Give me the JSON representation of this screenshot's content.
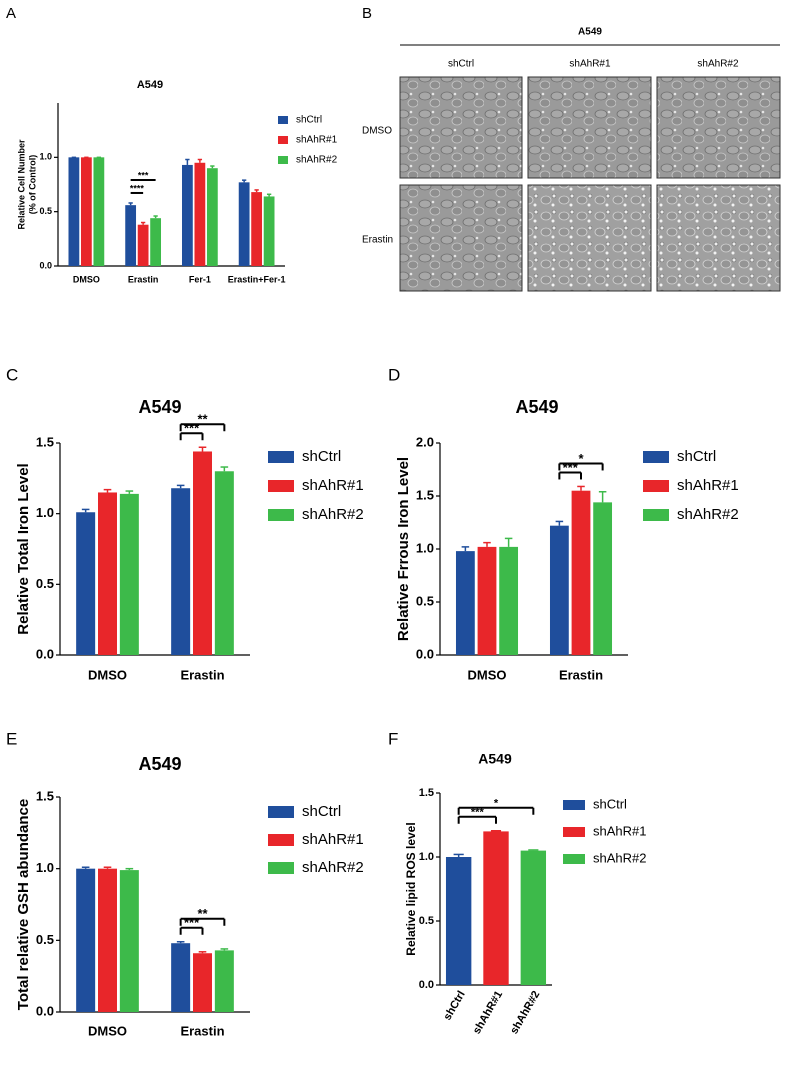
{
  "panel_b": {
    "label": "B",
    "title": "A549",
    "columns": [
      "shCtrl",
      "shAhR#1",
      "shAhR#2"
    ],
    "rows": [
      "DMSO",
      "Erastin"
    ]
  },
  "chart_data": [
    {
      "type": "bar",
      "label": "A",
      "title": "A549",
      "ylabel": [
        "Relative Cell Number",
        "(% of Control)"
      ],
      "categories": [
        "DMSO",
        "Erastin",
        "Fer-1",
        "Erastin+Fer-1"
      ],
      "series": [
        {
          "name": "shCtrl",
          "color": "#1f4e9c",
          "values": [
            1.0,
            0.56,
            0.93,
            0.77
          ],
          "errors": [
            0.0,
            0.02,
            0.05,
            0.02
          ]
        },
        {
          "name": "shAhR#1",
          "color": "#e8262a",
          "values": [
            1.0,
            0.38,
            0.95,
            0.68
          ],
          "errors": [
            0.0,
            0.02,
            0.03,
            0.02
          ]
        },
        {
          "name": "shAhR#2",
          "color": "#3dba4a",
          "values": [
            1.0,
            0.44,
            0.9,
            0.64
          ],
          "errors": [
            0.0,
            0.02,
            0.02,
            0.02
          ]
        }
      ],
      "ylim": [
        0,
        1.5
      ],
      "yticks": [
        {
          "value": 0,
          "label": "0.0"
        },
        {
          "value": 0.5,
          "label": "0.5"
        },
        {
          "value": 1,
          "label": "1.0"
        }
      ],
      "annotations": [
        "****",
        "***"
      ]
    },
    {
      "type": "bar",
      "label": "C",
      "title": "A549",
      "ylabel": "Relative Total Iron Level",
      "categories": [
        "DMSO",
        "Erastin"
      ],
      "series": [
        {
          "name": "shCtrl",
          "color": "#1f4e9c",
          "values": [
            1.01,
            1.18
          ],
          "errors": [
            0.02,
            0.02
          ]
        },
        {
          "name": "shAhR#1",
          "color": "#e8262a",
          "values": [
            1.15,
            1.44
          ],
          "errors": [
            0.02,
            0.03
          ]
        },
        {
          "name": "shAhR#2",
          "color": "#3dba4a",
          "values": [
            1.14,
            1.3
          ],
          "errors": [
            0.02,
            0.03
          ]
        }
      ],
      "ylim": [
        0,
        1.5
      ],
      "yticks": [
        {
          "value": 0,
          "label": "0.0"
        },
        {
          "value": 0.5,
          "label": "0.5"
        },
        {
          "value": 1,
          "label": "1.0"
        },
        {
          "value": 1.5,
          "label": "1.5"
        }
      ],
      "annotations": [
        "***",
        "**"
      ]
    },
    {
      "type": "bar",
      "label": "D",
      "title": "A549",
      "ylabel": "Relative Frrous Iron Level",
      "categories": [
        "DMSO",
        "Erastin"
      ],
      "series": [
        {
          "name": "shCtrl",
          "color": "#1f4e9c",
          "values": [
            0.98,
            1.22
          ],
          "errors": [
            0.04,
            0.04
          ]
        },
        {
          "name": "shAhR#1",
          "color": "#e8262a",
          "values": [
            1.02,
            1.55
          ],
          "errors": [
            0.04,
            0.04
          ]
        },
        {
          "name": "shAhR#2",
          "color": "#3dba4a",
          "values": [
            1.02,
            1.44
          ],
          "errors": [
            0.08,
            0.1
          ]
        }
      ],
      "ylim": [
        0,
        2
      ],
      "yticks": [
        {
          "value": 0,
          "label": "0.0"
        },
        {
          "value": 0.5,
          "label": "0.5"
        },
        {
          "value": 1,
          "label": "1.0"
        },
        {
          "value": 1.5,
          "label": "1.5"
        },
        {
          "value": 2,
          "label": "2.0"
        }
      ],
      "annotations": [
        "***",
        "*"
      ]
    },
    {
      "type": "bar",
      "label": "E",
      "title": "A549",
      "ylabel": "Total relative GSH abundance",
      "categories": [
        "DMSO",
        "Erastin"
      ],
      "series": [
        {
          "name": "shCtrl",
          "color": "#1f4e9c",
          "values": [
            1.0,
            0.48
          ],
          "errors": [
            0.01,
            0.01
          ]
        },
        {
          "name": "shAhR#1",
          "color": "#e8262a",
          "values": [
            1.0,
            0.41
          ],
          "errors": [
            0.01,
            0.01
          ]
        },
        {
          "name": "shAhR#2",
          "color": "#3dba4a",
          "values": [
            0.99,
            0.43
          ],
          "errors": [
            0.01,
            0.01
          ]
        }
      ],
      "ylim": [
        0,
        1.5
      ],
      "yticks": [
        {
          "value": 0,
          "label": "0.0"
        },
        {
          "value": 0.5,
          "label": "0.5"
        },
        {
          "value": 1,
          "label": "1.0"
        },
        {
          "value": 1.5,
          "label": "1.5"
        }
      ],
      "annotations": [
        "***",
        "**"
      ]
    },
    {
      "type": "colorbar",
      "label": "F",
      "title": "A549",
      "ylabel": "Relative lipid ROS level",
      "categories": [
        "shCtrl",
        "shAhR#1",
        "shAhR#2"
      ],
      "colors": [
        "#1f4e9c",
        "#e8262a",
        "#3dba4a"
      ],
      "values": [
        1.0,
        1.2,
        1.05
      ],
      "errors": [
        0.02,
        0.005,
        0.005
      ],
      "ylim": [
        0,
        1.5
      ],
      "yticks": [
        {
          "value": 0,
          "label": "0.0"
        },
        {
          "value": 0.5,
          "label": "0.5"
        },
        {
          "value": 1,
          "label": "1.0"
        },
        {
          "value": 1.5,
          "label": "1.5"
        }
      ],
      "annotations": [
        "***",
        "*"
      ]
    }
  ]
}
